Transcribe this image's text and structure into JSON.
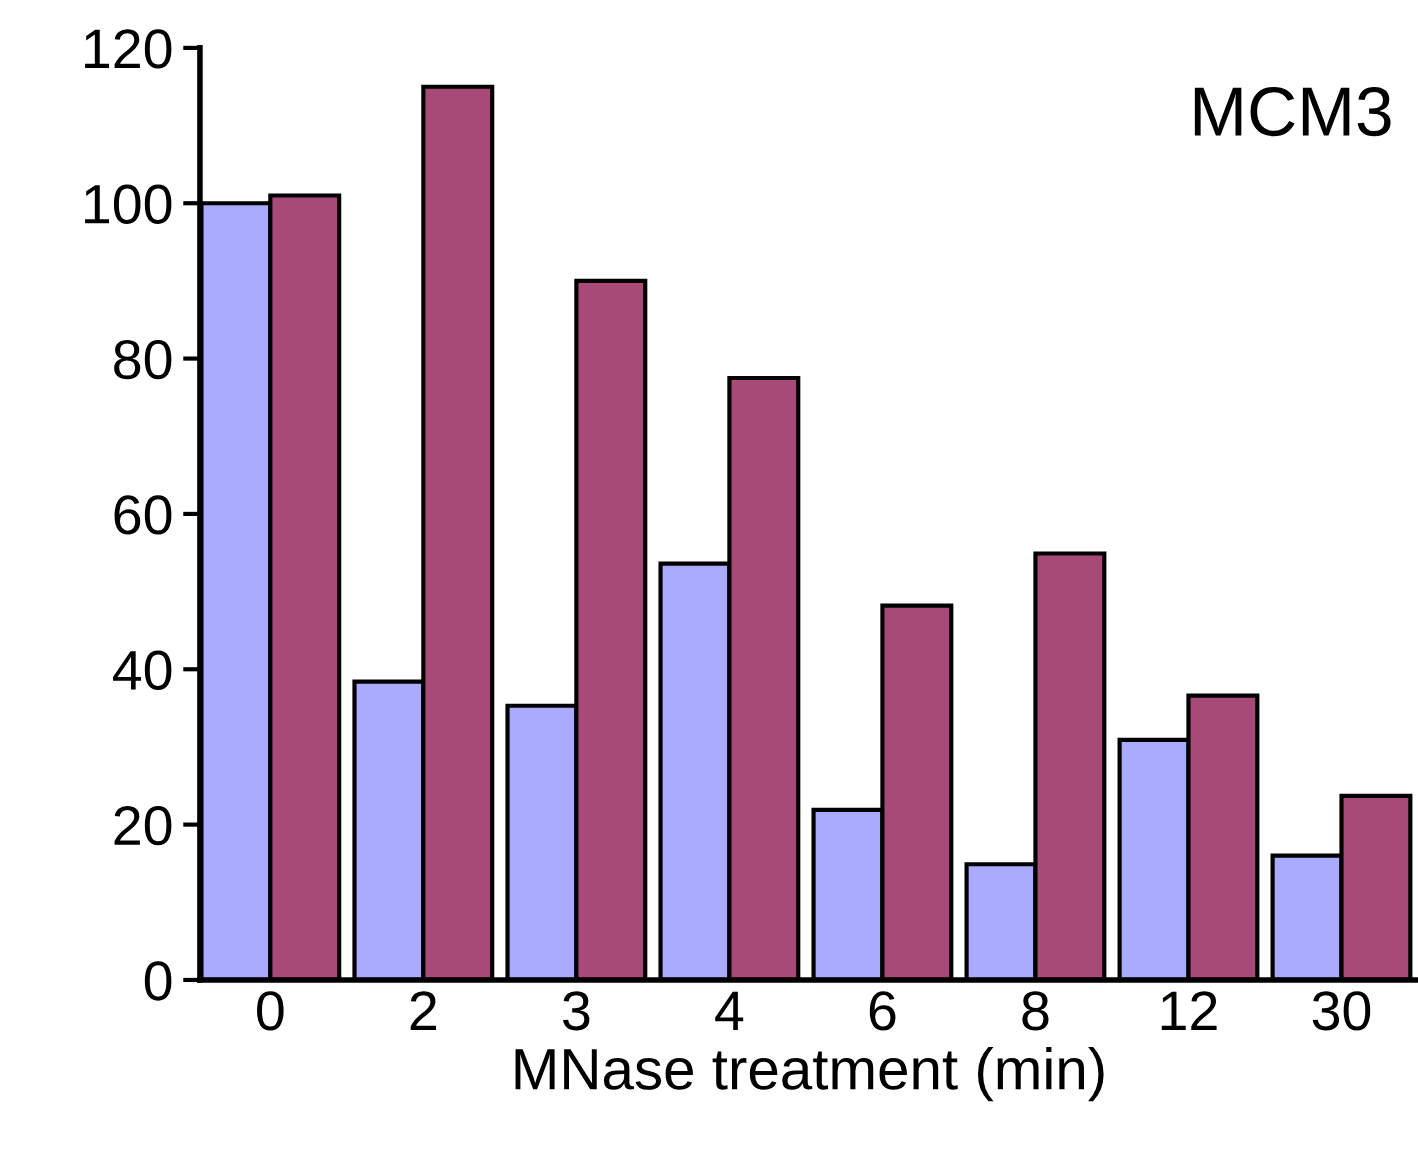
{
  "chart_data": {
    "type": "bar",
    "xlabel": "MNase treatment (min)",
    "annotations": [
      "MCM3"
    ],
    "categories": [
      "0",
      "2",
      "3",
      "4",
      "6",
      "8",
      "12",
      "30"
    ],
    "series": [
      {
        "color": "#aaaaff",
        "values": [
          100,
          38.4,
          35.3,
          53.6,
          21.9,
          14.9,
          30.9,
          16
        ]
      },
      {
        "color": "#a84a78",
        "values": [
          101,
          115,
          90,
          77.5,
          48.2,
          54.9,
          36.6,
          23.7
        ]
      }
    ],
    "ylim": [
      0,
      120
    ],
    "yticks": [
      0,
      20,
      40,
      60,
      80,
      100,
      120
    ],
    "grid": false,
    "legend": false
  }
}
